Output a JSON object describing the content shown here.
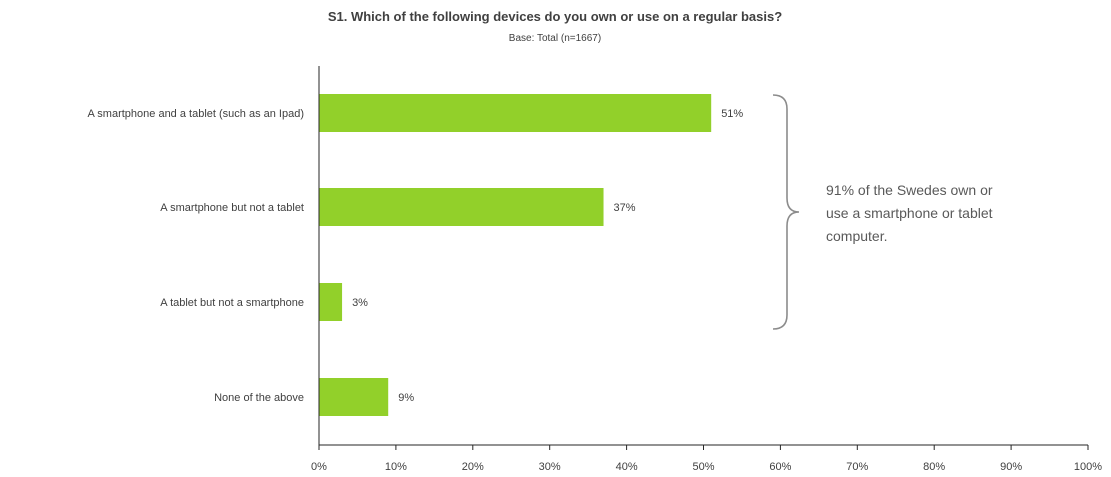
{
  "chart_data": {
    "type": "bar",
    "orientation": "horizontal",
    "title": "S1. Which of the following devices do you own or use on a regular basis?",
    "subtitle": "Base: Total (n=1667)",
    "categories": [
      "A smartphone  and a tablet (such as an Ipad)",
      "A smartphone  but not a tablet",
      "A tablet but not a smartphone",
      "None of the above"
    ],
    "values": [
      51,
      37,
      3,
      9
    ],
    "value_labels": [
      "51%",
      "37%",
      "3%",
      "9%"
    ],
    "xlim": [
      0,
      100
    ],
    "x_ticks": [
      "0%",
      "10%",
      "20%",
      "30%",
      "40%",
      "50%",
      "60%",
      "70%",
      "80%",
      "90%",
      "100%"
    ],
    "xlabel": "",
    "ylabel": "",
    "grid": false,
    "bar_color": "#92D02A",
    "annotation": {
      "lines": [
        "91% of the Swedes own or",
        "use a smartphone or tablet",
        "computer."
      ],
      "bracket_spans_categories": [
        0,
        2
      ]
    }
  }
}
